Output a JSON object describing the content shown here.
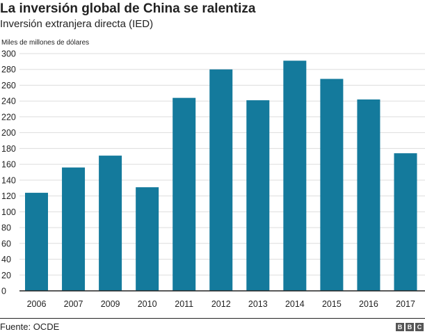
{
  "header": {
    "title": "La inversión global de China se ralentiza",
    "subtitle": "Inversión extranjera directa (IED)"
  },
  "footer": {
    "source": "Fuente: OCDE",
    "logo_letters": [
      "B",
      "B",
      "C"
    ]
  },
  "colors": {
    "bar": "#147a9c",
    "axis": "#222222",
    "grid": "#dddddd",
    "text": "#222222"
  },
  "chart_data": {
    "type": "bar",
    "title": "La inversión global de China se ralentiza",
    "subtitle": "Inversión extranjera directa (IED)",
    "ylabel": "Miles de millones de dólares",
    "xlabel": "",
    "categories": [
      "2006",
      "2007",
      "2009",
      "2010",
      "2011",
      "2012",
      "2013",
      "2014",
      "2015",
      "2016",
      "2017"
    ],
    "values": [
      124,
      156,
      171,
      131,
      244,
      280,
      241,
      291,
      268,
      242,
      174
    ],
    "ylim": [
      0,
      300
    ],
    "yticks": [
      0,
      20,
      40,
      60,
      80,
      100,
      120,
      140,
      160,
      180,
      200,
      220,
      240,
      260,
      280,
      300
    ],
    "grid": true
  }
}
